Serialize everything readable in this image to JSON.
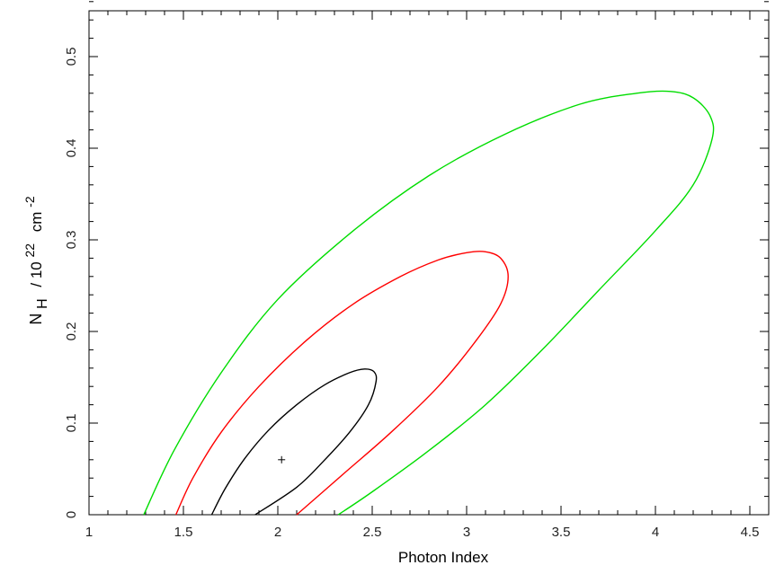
{
  "chart_data": {
    "type": "line",
    "title": "",
    "xlabel": "Photon Index",
    "ylabel": {
      "main": "N",
      "sub": "H",
      "sep": "/ 10",
      "exp": "22",
      "unit": "cm",
      "unit_exp": "-2"
    },
    "xlim": [
      1,
      4.6
    ],
    "ylim": [
      0,
      0.55
    ],
    "x_ticks": [
      1,
      1.5,
      2,
      2.5,
      3,
      3.5,
      4,
      4.5
    ],
    "x_tick_labels": [
      "1",
      "1.5",
      "2",
      "2.5",
      "3",
      "3.5",
      "4",
      "4.5"
    ],
    "y_ticks": [
      0,
      0.1,
      0.2,
      0.3,
      0.4,
      0.5
    ],
    "y_tick_labels": [
      "0",
      "0.1",
      "0.2",
      "0.3",
      "0.4",
      "0.5"
    ],
    "grid": false,
    "best_fit": {
      "x": 2.02,
      "y": 0.06
    },
    "series": [
      {
        "color": "#000000",
        "points": [
          [
            1.65,
            0
          ],
          [
            1.72,
            0.028
          ],
          [
            1.82,
            0.06
          ],
          [
            1.95,
            0.092
          ],
          [
            2.1,
            0.12
          ],
          [
            2.25,
            0.142
          ],
          [
            2.38,
            0.155
          ],
          [
            2.46,
            0.159
          ],
          [
            2.51,
            0.156
          ],
          [
            2.52,
            0.145
          ],
          [
            2.48,
            0.12
          ],
          [
            2.38,
            0.09
          ],
          [
            2.24,
            0.058
          ],
          [
            2.1,
            0.03
          ],
          [
            1.88,
            0
          ]
        ]
      },
      {
        "color": "#ff0000",
        "points": [
          [
            1.46,
            0
          ],
          [
            1.55,
            0.04
          ],
          [
            1.7,
            0.09
          ],
          [
            1.9,
            0.14
          ],
          [
            2.15,
            0.19
          ],
          [
            2.4,
            0.23
          ],
          [
            2.65,
            0.26
          ],
          [
            2.85,
            0.278
          ],
          [
            3.0,
            0.286
          ],
          [
            3.1,
            0.287
          ],
          [
            3.18,
            0.28
          ],
          [
            3.22,
            0.26
          ],
          [
            3.18,
            0.23
          ],
          [
            3.05,
            0.19
          ],
          [
            2.85,
            0.14
          ],
          [
            2.6,
            0.09
          ],
          [
            2.35,
            0.045
          ],
          [
            2.1,
            0
          ]
        ]
      },
      {
        "color": "#00dd00",
        "points": [
          [
            1.29,
            0
          ],
          [
            1.45,
            0.07
          ],
          [
            1.7,
            0.155
          ],
          [
            2.0,
            0.235
          ],
          [
            2.4,
            0.31
          ],
          [
            2.8,
            0.37
          ],
          [
            3.2,
            0.415
          ],
          [
            3.6,
            0.448
          ],
          [
            3.9,
            0.46
          ],
          [
            4.08,
            0.462
          ],
          [
            4.2,
            0.455
          ],
          [
            4.29,
            0.435
          ],
          [
            4.3,
            0.41
          ],
          [
            4.2,
            0.36
          ],
          [
            4.0,
            0.31
          ],
          [
            3.7,
            0.245
          ],
          [
            3.4,
            0.18
          ],
          [
            3.1,
            0.12
          ],
          [
            2.8,
            0.07
          ],
          [
            2.5,
            0.025
          ],
          [
            2.32,
            0
          ]
        ]
      }
    ]
  }
}
